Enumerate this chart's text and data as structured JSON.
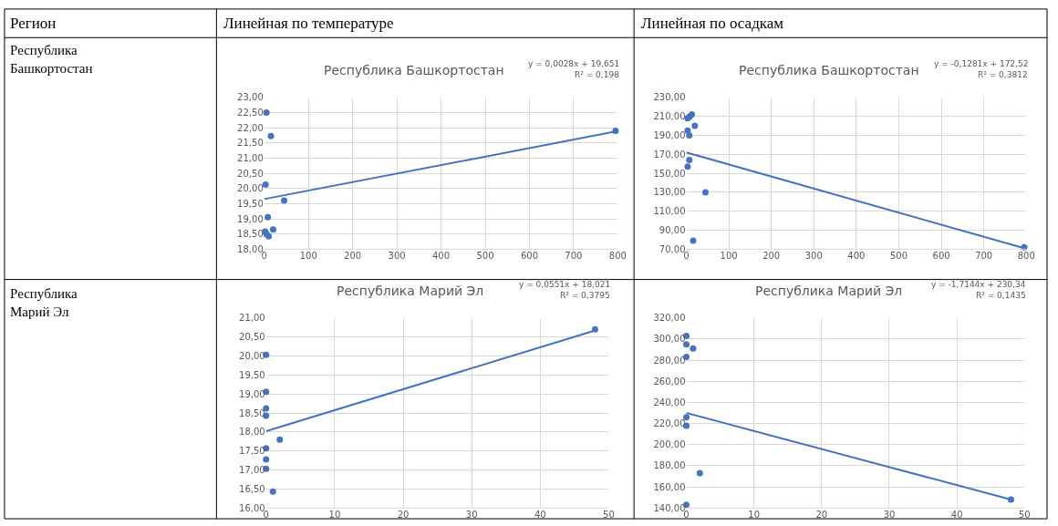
{
  "chart_data": [
    {
      "type": "other",
      "annotations": [
        "Регион",
        "Линейная по температуре",
        "Линейная по осадкам",
        "Республика Башкортостан",
        "Республика Марий Эл"
      ]
    },
    {
      "type": "scatter",
      "title": "Республика Башкортостан",
      "annotations": [
        "y = 0,0028x + 19,651",
        "R² = 0,198"
      ],
      "grid": true,
      "marker": "circle",
      "xlim": [
        0,
        800
      ],
      "xticks": [
        0,
        100,
        200,
        300,
        400,
        500,
        600,
        700,
        800
      ],
      "ylim": [
        18,
        23
      ],
      "yticks": [
        {
          "value": 18,
          "label": "18,00"
        },
        {
          "value": 18.5,
          "label": "18,50"
        },
        {
          "value": 19,
          "label": "19,00"
        },
        {
          "value": 19.5,
          "label": "19,50"
        },
        {
          "value": 20,
          "label": "20,00"
        },
        {
          "value": 20.5,
          "label": "20,50"
        },
        {
          "value": 21,
          "label": "21,00"
        },
        {
          "value": 21.5,
          "label": "21,50"
        },
        {
          "value": 22,
          "label": "22,00"
        },
        {
          "value": 22.5,
          "label": "22,50"
        },
        {
          "value": 23,
          "label": "23,00"
        }
      ],
      "series": [
        {
          "color": "#4472c4",
          "x": [
            5,
            15,
            3,
            45,
            8,
            20,
            2,
            5,
            10,
            795
          ],
          "values": [
            22.5,
            21.73,
            20.13,
            19.6,
            19.05,
            18.65,
            18.58,
            18.5,
            18.42,
            21.9
          ]
        },
        {
          "type": "line",
          "marker": "none",
          "color": "#4472c4",
          "x": [
            0,
            800
          ],
          "values": [
            19.65,
            21.89
          ]
        }
      ]
    },
    {
      "type": "scatter",
      "title": "Республика Башкортостан",
      "annotations": [
        "y = -0,1281x + 172,52",
        "R² = 0,3812"
      ],
      "grid": true,
      "marker": "circle",
      "xlim": [
        0,
        800
      ],
      "xticks": [
        0,
        100,
        200,
        300,
        400,
        500,
        600,
        700,
        800
      ],
      "ylim": [
        70,
        230
      ],
      "yticks": [
        {
          "value": 70,
          "label": "70,00"
        },
        {
          "value": 90,
          "label": "90,00"
        },
        {
          "value": 110,
          "label": "110,00"
        },
        {
          "value": 130,
          "label": "130,00"
        },
        {
          "value": 150,
          "label": "150,00"
        },
        {
          "value": 170,
          "label": "170,00"
        },
        {
          "value": 190,
          "label": "190,00"
        },
        {
          "value": 210,
          "label": "210,00"
        },
        {
          "value": 230,
          "label": "230,00"
        }
      ],
      "series": [
        {
          "color": "#4472c4",
          "x": [
            3,
            13,
            8,
            20,
            3,
            7,
            7,
            3,
            45,
            16,
            795
          ],
          "values": [
            208,
            212,
            210,
            200,
            195,
            190,
            164,
            157,
            130,
            79,
            72
          ]
        },
        {
          "type": "line",
          "marker": "none",
          "color": "#4472c4",
          "x": [
            0,
            795
          ],
          "values": [
            172,
            71
          ]
        }
      ]
    },
    {
      "type": "scatter",
      "title": "Республика Марий Эл",
      "annotations": [
        "y = 0,0551x + 18,021",
        "R² = 0,3795"
      ],
      "grid": true,
      "marker": "circle",
      "xlim": [
        0,
        50
      ],
      "xticks": [
        0,
        10,
        20,
        30,
        40,
        50
      ],
      "ylim": [
        16,
        21
      ],
      "yticks": [
        {
          "value": 16,
          "label": "16,00"
        },
        {
          "value": 16.5,
          "label": "16,50"
        },
        {
          "value": 17,
          "label": "17,00"
        },
        {
          "value": 17.5,
          "label": "17,50"
        },
        {
          "value": 18,
          "label": "18,00"
        },
        {
          "value": 18.5,
          "label": "18,50"
        },
        {
          "value": 19,
          "label": "19,00"
        },
        {
          "value": 19.5,
          "label": "19,50"
        },
        {
          "value": 20,
          "label": "20,00"
        },
        {
          "value": 20.5,
          "label": "20,50"
        },
        {
          "value": 21,
          "label": "21,00"
        }
      ],
      "series": [
        {
          "color": "#4472c4",
          "x": [
            0,
            0,
            0,
            0,
            2,
            0,
            0,
            0,
            1,
            48
          ],
          "values": [
            20.03,
            19.06,
            18.62,
            18.43,
            17.8,
            17.57,
            17.28,
            17.03,
            16.43,
            20.7
          ]
        },
        {
          "type": "line",
          "marker": "none",
          "color": "#4472c4",
          "x": [
            0,
            48
          ],
          "values": [
            18.02,
            20.67
          ]
        }
      ]
    },
    {
      "type": "scatter",
      "title": "Республика Марий Эл",
      "annotations": [
        "y = -1,7144x + 230,34",
        "R² = 0,1435"
      ],
      "grid": true,
      "marker": "circle",
      "xlim": [
        0,
        50
      ],
      "xticks": [
        0,
        10,
        20,
        30,
        40,
        50
      ],
      "ylim": [
        140,
        320
      ],
      "yticks": [
        {
          "value": 140,
          "label": "140,00"
        },
        {
          "value": 160,
          "label": "160,00"
        },
        {
          "value": 180,
          "label": "180,00"
        },
        {
          "value": 200,
          "label": "200,00"
        },
        {
          "value": 220,
          "label": "220,00"
        },
        {
          "value": 240,
          "label": "240,00"
        },
        {
          "value": 260,
          "label": "260,00"
        },
        {
          "value": 280,
          "label": "280,00"
        },
        {
          "value": 300,
          "label": "300,00"
        },
        {
          "value": 320,
          "label": "320,00"
        }
      ],
      "series": [
        {
          "color": "#4472c4",
          "x": [
            0,
            0,
            1,
            0,
            0,
            0,
            2,
            0,
            48
          ],
          "values": [
            303,
            295,
            291,
            283,
            226,
            218,
            173,
            143,
            148
          ]
        },
        {
          "type": "line",
          "marker": "none",
          "color": "#4472c4",
          "x": [
            0,
            48
          ],
          "values": [
            230,
            148
          ]
        }
      ]
    }
  ]
}
